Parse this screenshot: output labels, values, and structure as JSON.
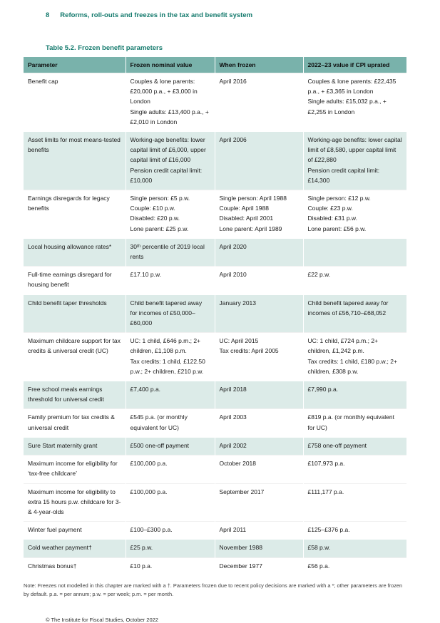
{
  "page": {
    "number": "8",
    "chapter_title": "Reforms, roll-outs and freezes in the tax and benefit system",
    "footer": "© The Institute for Fiscal Studies, October 2022"
  },
  "colors": {
    "accent_teal": "#147a6d",
    "table_header_bg": "#79b2ab",
    "shaded_row_bg": "#dcebe8"
  },
  "table": {
    "title": "Table 5.2. Frozen benefit parameters",
    "columns": [
      "Parameter",
      "Frozen nominal value",
      "When frozen",
      "2022–23 value if CPI uprated"
    ],
    "rows": [
      {
        "shaded": false,
        "cells": [
          "Benefit cap",
          "Couples & lone parents: £20,000 p.a., + £3,000 in London\nSingle adults: £13,400 p.a., + £2,010 in London",
          "April 2016",
          "Couples & lone parents: £22,435 p.a., + £3,365 in London\nSingle adults: £15,032 p.a., + £2,255 in London"
        ]
      },
      {
        "shaded": true,
        "cells": [
          "Asset limits for most means-tested benefits",
          "Working-age benefits: lower capital limit of £6,000, upper capital limit of £16,000\nPension credit capital limit: £10,000",
          "April 2006",
          "Working-age benefits: lower capital limit of £8,580, upper capital limit of £22,880\nPension credit capital limit: £14,300"
        ]
      },
      {
        "shaded": false,
        "cells": [
          "Earnings disregards for legacy benefits",
          "Single person: £5 p.w.\nCouple: £10 p.w.\nDisabled: £20 p.w.\nLone parent: £25 p.w.",
          "Single person: April 1988\nCouple: April 1988\nDisabled: April 2001\nLone parent: April 1989",
          "Single person: £12 p.w.\nCouple: £23 p.w.\nDisabled: £31 p.w.\nLone parent: £56 p.w."
        ]
      },
      {
        "shaded": true,
        "cells": [
          "Local housing allowance rates*",
          "30ᵗʰ percentile of 2019 local rents",
          "April 2020",
          ""
        ]
      },
      {
        "shaded": false,
        "cells": [
          "Full-time earnings disregard for housing benefit",
          "£17.10 p.w.",
          "April 2010",
          "£22 p.w."
        ]
      },
      {
        "shaded": true,
        "cells": [
          "Child benefit taper thresholds",
          "Child benefit tapered away for incomes of £50,000–£60,000",
          "January 2013",
          "Child benefit tapered away for incomes of £56,710–£68,052"
        ]
      },
      {
        "shaded": false,
        "cells": [
          "Maximum childcare support for tax credits & universal credit (UC)",
          "UC: 1 child, £646 p.m.; 2+ children, £1,108 p.m.\nTax credits: 1 child, £122.50 p.w.; 2+ children, £210 p.w.",
          "UC: April 2015\nTax credits: April 2005",
          "UC: 1 child, £724 p.m.; 2+ children, £1,242 p.m.\nTax credits: 1 child, £180 p.w.; 2+ children, £308 p.w."
        ]
      },
      {
        "shaded": true,
        "cells": [
          "Free school meals earnings threshold for universal credit",
          "£7,400 p.a.",
          "April 2018",
          "£7,990 p.a."
        ]
      },
      {
        "shaded": false,
        "cells": [
          "Family premium for tax credits & universal credit",
          "£545 p.a. (or monthly equivalent for UC)",
          "April 2003",
          "£819 p.a. (or monthly equivalent for UC)"
        ]
      },
      {
        "shaded": true,
        "cells": [
          "Sure Start maternity grant",
          "£500 one-off payment",
          "April 2002",
          "£758 one-off payment"
        ]
      },
      {
        "shaded": false,
        "cells": [
          "Maximum income for eligibility for ‘tax-free childcare’",
          "£100,000 p.a.",
          "October 2018",
          "£107,973 p.a."
        ]
      },
      {
        "shaded": false,
        "cells": [
          "Maximum income for eligibility to extra 15 hours p.w. childcare for 3- & 4-year-olds",
          "£100,000 p.a.",
          "September 2017",
          "£111,177 p.a."
        ]
      },
      {
        "shaded": false,
        "cells": [
          "Winter fuel payment",
          "£100–£300 p.a.",
          "April 2011",
          "£125–£376 p.a."
        ]
      },
      {
        "shaded": true,
        "cells": [
          "Cold weather payment†",
          "£25 p.w.",
          "November 1988",
          "£58 p.w."
        ]
      },
      {
        "shaded": false,
        "cells": [
          "Christmas bonus†",
          "£10 p.a.",
          "December 1977",
          "£56 p.a."
        ]
      }
    ],
    "note": "Note: Freezes not modelled in this chapter are marked with a †. Parameters frozen due to recent policy decisions are marked with a *; other parameters are frozen by default. p.a. = per annum; p.w. = per week; p.m. = per month."
  }
}
